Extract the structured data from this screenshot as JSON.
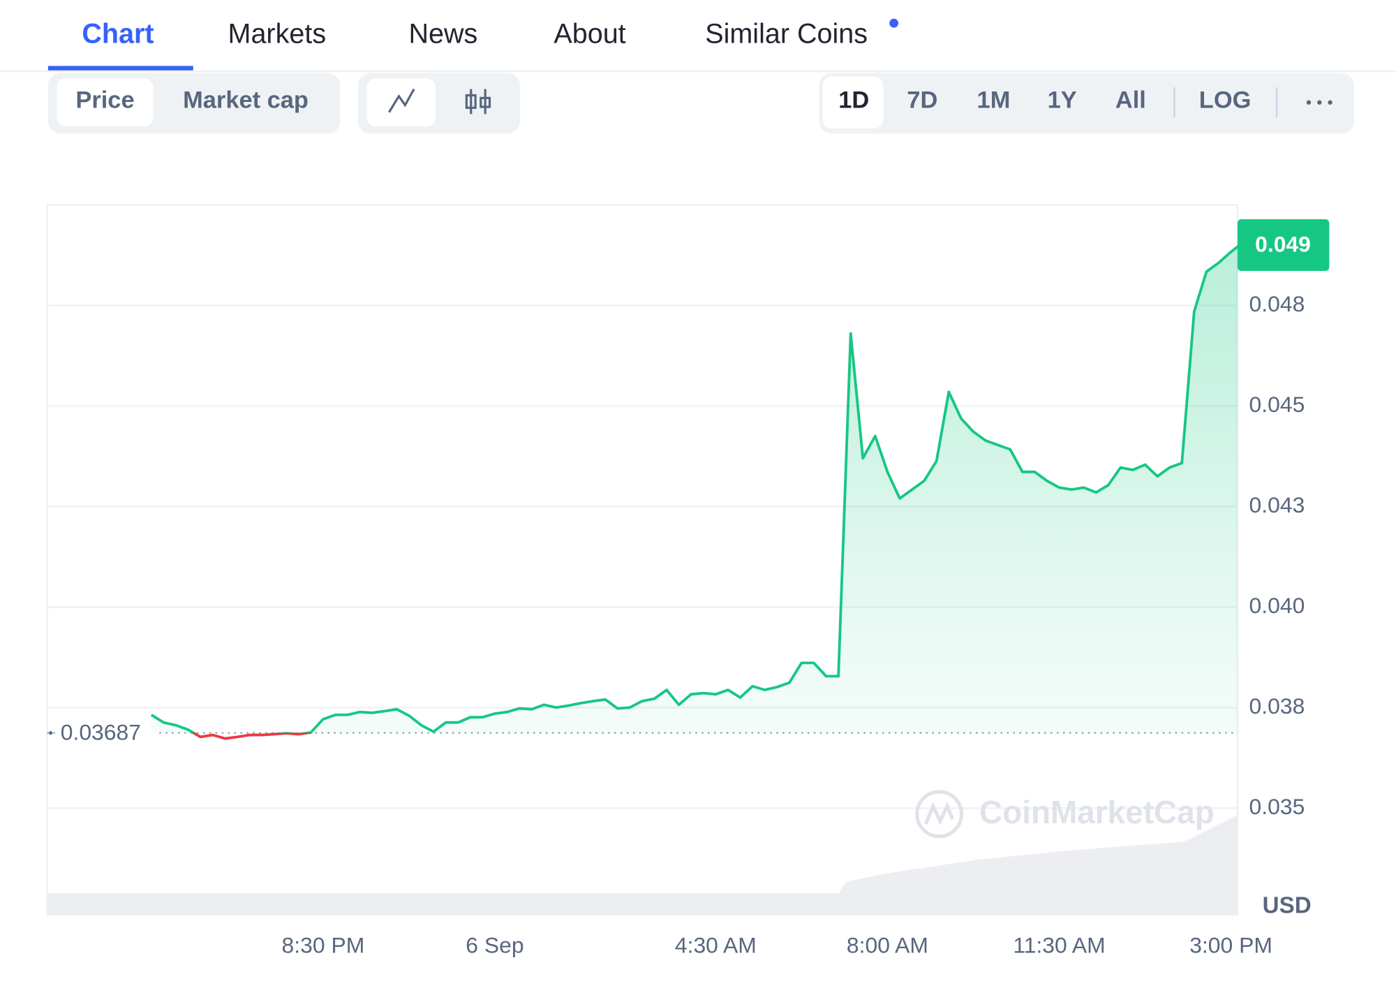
{
  "tabs": [
    "Chart",
    "Markets",
    "News",
    "About",
    "Similar Coins"
  ],
  "metric_toggle": [
    "Price",
    "Market cap"
  ],
  "range_buttons": [
    "1D",
    "7D",
    "1M",
    "1Y",
    "All"
  ],
  "scale_button": "LOG",
  "chart_data": {
    "type": "line",
    "categories": [
      null,
      null,
      null,
      null,
      null,
      null,
      null,
      null,
      null,
      null,
      null,
      null,
      null,
      null,
      "8:30 PM",
      null,
      null,
      null,
      null,
      null,
      null,
      null,
      null,
      null,
      null,
      null,
      null,
      null,
      "6 Sep",
      null,
      null,
      null,
      null,
      null,
      null,
      null,
      null,
      null,
      null,
      null,
      null,
      null,
      null,
      null,
      null,
      null,
      "4:30 AM",
      null,
      null,
      null,
      null,
      null,
      null,
      null,
      null,
      null,
      null,
      null,
      null,
      null,
      "8:00 AM",
      null,
      null,
      null,
      null,
      null,
      null,
      null,
      null,
      null,
      null,
      null,
      null,
      null,
      "11:30 AM",
      null,
      null,
      null,
      null,
      null,
      null,
      null,
      null,
      null,
      null,
      null,
      null,
      null,
      "3:00 PM",
      null
    ],
    "series": [
      {
        "color": "#16c784",
        "negative_color": "#ea3943",
        "values": [
          0.03732,
          0.03713,
          0.03706,
          0.03695,
          0.03677,
          0.03682,
          0.03673,
          0.03677,
          0.03682,
          0.03682,
          0.03684,
          0.03686,
          0.03684,
          0.03688,
          0.03721,
          0.03732,
          0.03732,
          0.03739,
          0.03737,
          0.03741,
          0.03746,
          0.0373,
          0.03706,
          0.0369,
          0.03713,
          0.03713,
          0.03726,
          0.03726,
          0.03735,
          0.03739,
          0.03748,
          0.03746,
          0.03757,
          0.0375,
          0.03755,
          0.03761,
          0.03766,
          0.0377,
          0.03748,
          0.0375,
          0.03766,
          0.03772,
          0.03794,
          0.03757,
          0.03783,
          0.03786,
          0.03783,
          0.03794,
          0.03775,
          0.03803,
          0.03794,
          0.03801,
          0.03812,
          0.03861,
          0.03861,
          0.03828,
          0.03828,
          0.0468,
          0.0437,
          0.04425,
          0.04336,
          0.0427,
          0.04292,
          0.04314,
          0.04363,
          0.04535,
          0.04469,
          0.04436,
          0.04414,
          0.04403,
          0.04392,
          0.04336,
          0.04336,
          0.04314,
          0.04297,
          0.04292,
          0.04297,
          0.04285,
          0.04303,
          0.04347,
          0.04341,
          0.04354,
          0.04325,
          0.04347,
          0.04358,
          0.04735,
          0.04834,
          0.04856,
          0.04883,
          0.04907
        ]
      }
    ],
    "reference_value": 0.03687,
    "current_price": 0.049,
    "ylim": [
      0.03235,
      0.05
    ],
    "yticks": [
      0.035,
      {
        "value": 0.0375,
        "label": "0.038"
      },
      {
        "value": 0.04,
        "label": "0.040"
      },
      {
        "value": 0.0425,
        "label": "0.043"
      },
      0.045,
      {
        "value": 0.0475,
        "label": "0.048"
      }
    ],
    "grid": true,
    "y_unit": "USD",
    "watermark": "CoinMarketCap"
  }
}
